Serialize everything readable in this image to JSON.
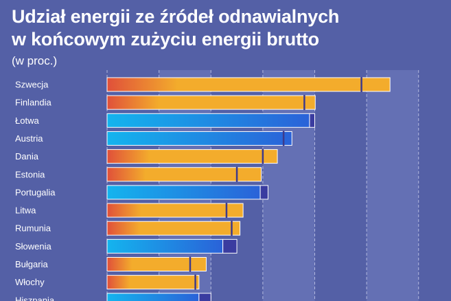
{
  "header": {
    "title_line1": "Udział energii ze źródeł odnawialnych",
    "title_line2": "w końcowym zużyciu energii brutto",
    "subtitle": "(w proc.)"
  },
  "colors": {
    "background": "#5460a6",
    "band": "#6470b4",
    "orange_start": "#e0503a",
    "orange_end": "#f3ac2c",
    "blue_start": "#14b4ee",
    "blue_end": "#2a62d8",
    "target_segment": "#3a3ca0",
    "target_mark": "#3e3a8a"
  },
  "chart_data": {
    "type": "bar",
    "orientation": "horizontal",
    "title": "Udział energii ze źródeł odnawialnych w końcowym zużyciu energii brutto",
    "unit": "(w proc.)",
    "xlim": [
      0,
      64
    ],
    "grid": true,
    "categories": [
      "Szwecja",
      "Finlandia",
      "Łotwa",
      "Austria",
      "Dania",
      "Estonia",
      "Portugalia",
      "Litwa",
      "Rumunia",
      "Słowenia",
      "Bułgaria",
      "Włochy",
      "Hiszpania"
    ],
    "values": [
      54.5,
      40.1,
      39.0,
      35.6,
      32.8,
      29.7,
      29.5,
      26.2,
      25.6,
      22.3,
      19.1,
      17.7,
      17.7
    ],
    "targets": [
      49,
      38,
      40,
      34,
      30,
      25,
      31,
      23,
      24,
      25,
      16,
      17,
      20
    ],
    "bar_colors": [
      "orange",
      "orange",
      "blue",
      "blue",
      "orange",
      "orange",
      "blue",
      "orange",
      "orange",
      "blue",
      "orange",
      "orange",
      "blue"
    ]
  }
}
